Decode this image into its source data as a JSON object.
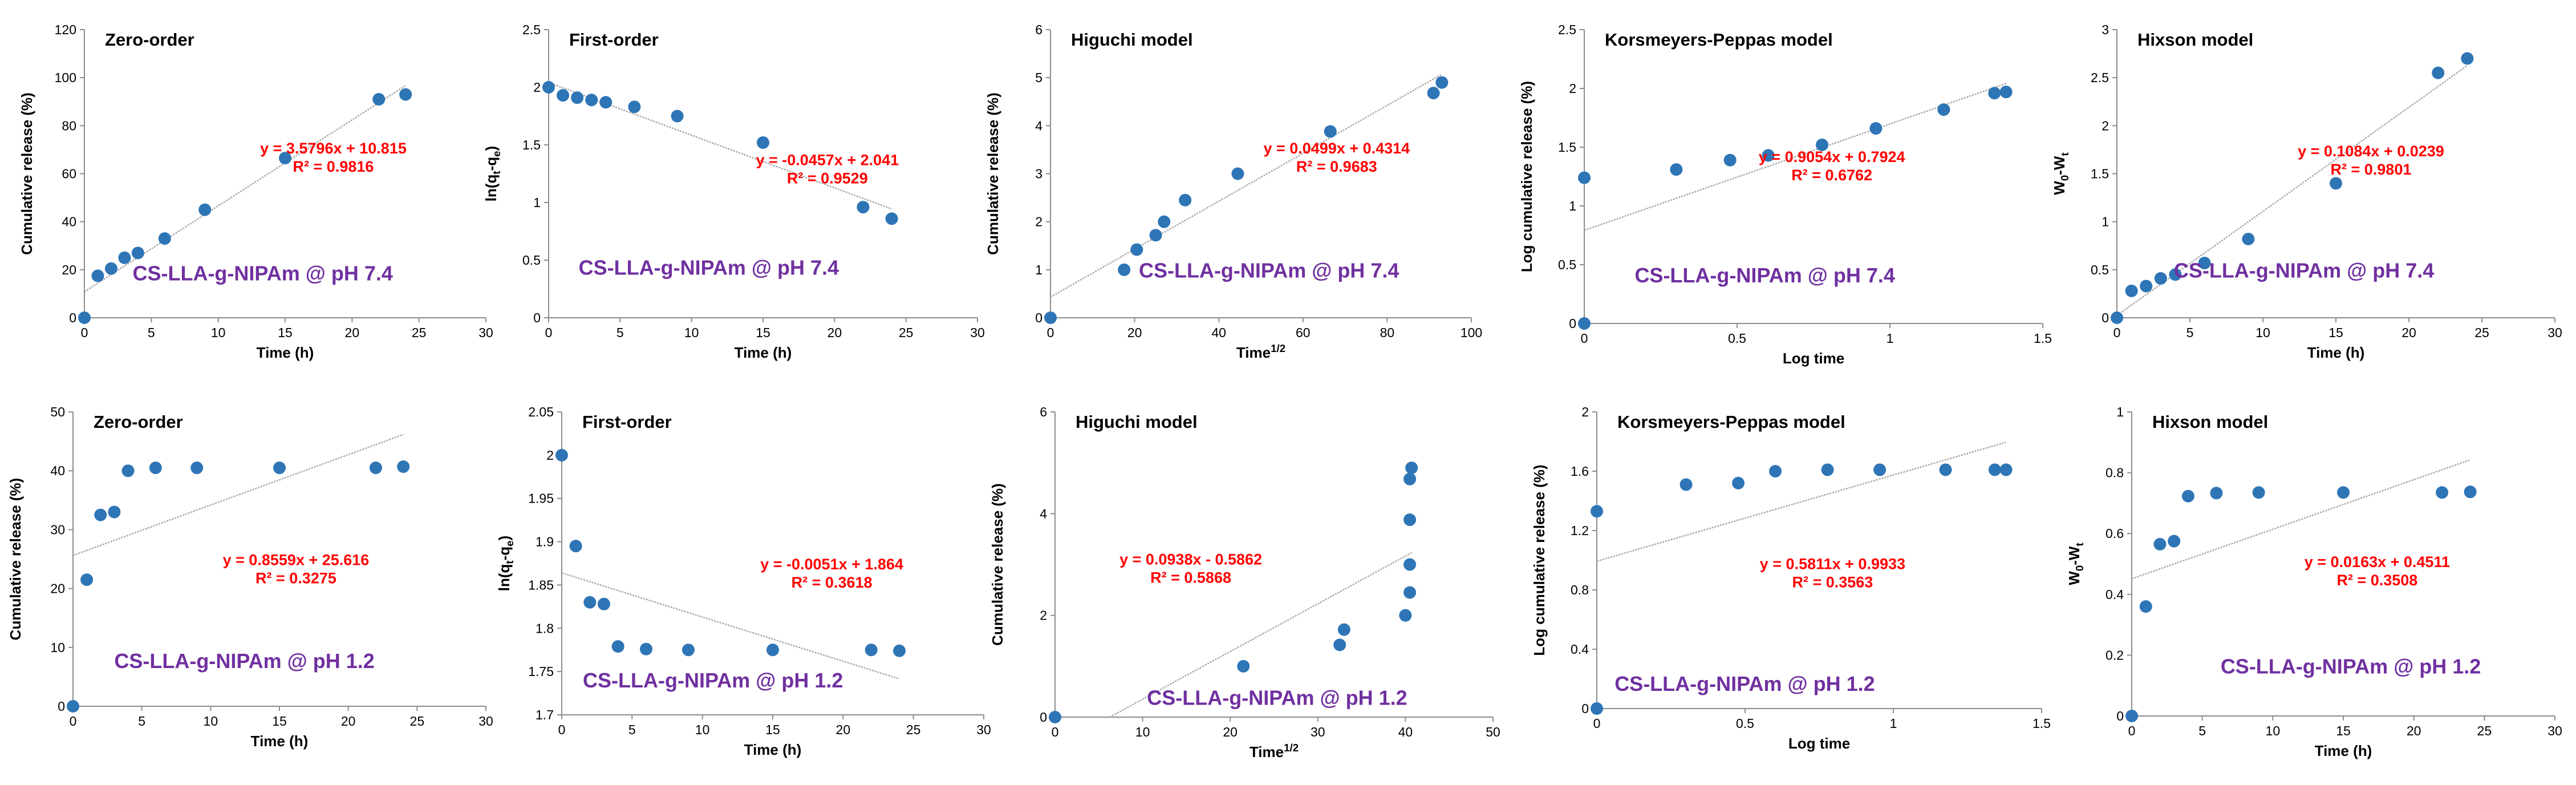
{
  "colors": {
    "point": "#2E75B6",
    "trendline": "#A6A6A6",
    "axis": "#8C8C8C",
    "equation": "#FF0000",
    "sample_label": "#7030A0",
    "text": "#000000"
  },
  "chart_data": [
    {
      "type": "scatter",
      "title": "Zero-order",
      "xlabel": "Time (h)",
      "ylabel": "Cumulative release (%)",
      "xlim": [
        0,
        30
      ],
      "ylim": [
        0,
        120
      ],
      "xticks": [
        0,
        5,
        10,
        15,
        20,
        25,
        30
      ],
      "yticks": [
        0,
        20,
        40,
        60,
        80,
        100,
        120
      ],
      "x": [
        0,
        1,
        2,
        3,
        4,
        6,
        9,
        15,
        22,
        24
      ],
      "y": [
        0,
        17.5,
        20.5,
        25,
        27,
        33,
        45,
        66.5,
        91,
        93
      ],
      "trendline": {
        "slope": 3.5796,
        "intercept": 10.815,
        "x_range": [
          0,
          24
        ]
      },
      "equation": "y = 3.5796x + 10.815",
      "r2": "R² = 0.9816",
      "sample": "CS-LLA-g-NIPAm @ pH 7.4"
    },
    {
      "type": "scatter",
      "title": "First-order",
      "xlabel": "Time (h)",
      "ylabel": "ln(q<sub>t</sub>-q<sub>e</sub>)",
      "xlim": [
        0,
        30
      ],
      "ylim": [
        0,
        2.5
      ],
      "xticks": [
        0,
        5,
        10,
        15,
        20,
        25,
        30
      ],
      "yticks": [
        0,
        0.5,
        1,
        1.5,
        2,
        2.5
      ],
      "x": [
        0,
        1,
        2,
        3,
        4,
        6,
        9,
        15,
        22,
        24
      ],
      "y": [
        2.0,
        1.93,
        1.91,
        1.89,
        1.87,
        1.83,
        1.75,
        1.52,
        0.96,
        0.86
      ],
      "trendline": {
        "slope": -0.0457,
        "intercept": 2.041,
        "x_range": [
          0,
          24
        ]
      },
      "equation": "y = -0.0457x + 2.041",
      "r2": "R² = 0.9529",
      "sample": "CS-LLA-g-NIPAm @ pH 7.4"
    },
    {
      "type": "scatter",
      "title": "Higuchi model",
      "xlabel": "Time<sup>1/2</sup>",
      "ylabel": "Cumulative release (%)",
      "xlim": [
        0,
        100
      ],
      "ylim": [
        0,
        6
      ],
      "xticks": [
        0,
        20,
        40,
        60,
        80,
        100
      ],
      "yticks": [
        0,
        1,
        2,
        3,
        4,
        5,
        6
      ],
      "x": [
        0,
        17.5,
        20.5,
        25,
        27,
        32,
        44.5,
        66.5,
        91,
        93
      ],
      "y": [
        0,
        1.0,
        1.42,
        1.72,
        2.0,
        2.45,
        3.0,
        3.88,
        4.68,
        4.9
      ],
      "trendline": {
        "slope": 0.0499,
        "intercept": 0.4314,
        "x_range": [
          0,
          93
        ]
      },
      "equation": "y = 0.0499x + 0.4314",
      "r2": "R² = 0.9683",
      "sample": "CS-LLA-g-NIPAm @ pH 7.4"
    },
    {
      "type": "scatter",
      "title": "Korsmeyers-Peppas model",
      "xlabel": "Log time",
      "ylabel": "Log cumulative release (%)",
      "xlim": [
        0,
        1.5
      ],
      "ylim": [
        0,
        2.5
      ],
      "xticks": [
        0,
        0.5,
        1,
        1.5
      ],
      "yticks": [
        0,
        0.5,
        1,
        1.5,
        2,
        2.5
      ],
      "x": [
        0,
        0,
        0.301,
        0.477,
        0.602,
        0.778,
        0.954,
        1.176,
        1.342,
        1.38
      ],
      "y": [
        1.24,
        0,
        1.31,
        1.39,
        1.43,
        1.52,
        1.66,
        1.82,
        1.96,
        1.97
      ],
      "trendline": {
        "slope": 0.9054,
        "intercept": 0.7924,
        "x_range": [
          0,
          1.38
        ]
      },
      "equation": "y = 0.9054x + 0.7924",
      "r2": "R² = 0.6762",
      "sample": "CS-LLA-g-NIPAm @ pH 7.4"
    },
    {
      "type": "scatter",
      "title": "Hixson model",
      "xlabel": "Time (h)",
      "ylabel": "W<sub>0</sub>-W<sub>t</sub>",
      "xlim": [
        0,
        30
      ],
      "ylim": [
        0,
        3
      ],
      "xticks": [
        0,
        5,
        10,
        15,
        20,
        25,
        30
      ],
      "yticks": [
        0,
        0.5,
        1,
        1.5,
        2,
        2.5,
        3
      ],
      "x": [
        0,
        1,
        2,
        3,
        4,
        6,
        9,
        15,
        22,
        24
      ],
      "y": [
        0,
        0.28,
        0.33,
        0.41,
        0.45,
        0.57,
        0.82,
        1.4,
        2.55,
        2.7
      ],
      "trendline": {
        "slope": 0.1084,
        "intercept": 0.0239,
        "x_range": [
          0,
          24
        ]
      },
      "equation": "y = 0.1084x + 0.0239",
      "r2": "R² = 0.9801",
      "sample": "CS-LLA-g-NIPAm @ pH 7.4"
    },
    {
      "type": "scatter",
      "title": "Zero-order",
      "xlabel": "Time (h)",
      "ylabel": "Cumulative release (%)",
      "xlim": [
        0,
        30
      ],
      "ylim": [
        0,
        50
      ],
      "xticks": [
        0,
        5,
        10,
        15,
        20,
        25,
        30
      ],
      "yticks": [
        0,
        10,
        20,
        30,
        40,
        50
      ],
      "x": [
        0,
        1,
        2,
        3,
        4,
        6,
        9,
        15,
        22,
        24
      ],
      "y": [
        0,
        21.5,
        32.5,
        33,
        40,
        40.5,
        40.5,
        40.5,
        40.5,
        40.7
      ],
      "trendline": {
        "slope": 0.8559,
        "intercept": 25.616,
        "x_range": [
          0,
          24
        ]
      },
      "equation": "y = 0.8559x + 25.616",
      "r2": "R² = 0.3275",
      "sample": "CS-LLA-g-NIPAm @ pH 1.2"
    },
    {
      "type": "scatter",
      "title": "First-order",
      "xlabel": "Time (h)",
      "ylabel": "ln(q<sub>t</sub>-q<sub>e</sub>)",
      "xlim": [
        0,
        30
      ],
      "ylim": [
        1.7,
        2.05
      ],
      "xticks": [
        0,
        5,
        10,
        15,
        20,
        25,
        30
      ],
      "yticks": [
        1.7,
        1.75,
        1.8,
        1.85,
        1.9,
        1.95,
        2,
        2.05
      ],
      "x": [
        0,
        1,
        2,
        3,
        4,
        6,
        9,
        15,
        22,
        24
      ],
      "y": [
        2.0,
        1.895,
        1.83,
        1.828,
        1.779,
        1.776,
        1.775,
        1.775,
        1.775,
        1.774
      ],
      "trendline": {
        "slope": -0.0051,
        "intercept": 1.864,
        "x_range": [
          0,
          24
        ]
      },
      "equation": "y = -0.0051x + 1.864",
      "r2": "R² = 0.3618",
      "sample": "CS-LLA-g-NIPAm @ pH 1.2"
    },
    {
      "type": "scatter",
      "title": "Higuchi model",
      "xlabel": "Time<sup>1/2</sup>",
      "ylabel": "Cumulative release (%)",
      "xlim": [
        0,
        50
      ],
      "ylim": [
        0,
        6
      ],
      "xticks": [
        0,
        10,
        20,
        30,
        40,
        50
      ],
      "yticks": [
        0,
        2,
        4,
        6
      ],
      "x": [
        0,
        21.5,
        32.5,
        33,
        40,
        40.5,
        40.5,
        40.5,
        40.5,
        40.7
      ],
      "y": [
        0,
        1.0,
        1.42,
        1.72,
        2.0,
        2.45,
        3.0,
        3.88,
        4.68,
        4.9
      ],
      "trendline": {
        "slope": 0.0938,
        "intercept": -0.5862,
        "x_range": [
          6.25,
          40.7
        ]
      },
      "equation": "y = 0.0938x - 0.5862",
      "r2": "R² = 0.5868",
      "sample": "CS-LLA-g-NIPAm @ pH 1.2"
    },
    {
      "type": "scatter",
      "title": "Korsmeyers-Peppas model",
      "xlabel": "Log time",
      "ylabel": "Log cumulative release (%)",
      "xlim": [
        0,
        1.5
      ],
      "ylim": [
        0,
        2
      ],
      "xticks": [
        0,
        0.5,
        1,
        1.5
      ],
      "yticks": [
        0,
        0.4,
        0.8,
        1.2,
        1.6,
        2
      ],
      "x": [
        0,
        0,
        0.301,
        0.477,
        0.602,
        0.778,
        0.954,
        1.176,
        1.342,
        1.38
      ],
      "y": [
        1.33,
        0,
        1.51,
        1.52,
        1.6,
        1.61,
        1.61,
        1.61,
        1.61,
        1.61
      ],
      "trendline": {
        "slope": 0.5811,
        "intercept": 0.9933,
        "x_range": [
          0,
          1.38
        ]
      },
      "equation": "y = 0.5811x + 0.9933",
      "r2": "R² = 0.3563",
      "sample": "CS-LLA-g-NIPAm @ pH 1.2"
    },
    {
      "type": "scatter",
      "title": "Hixson model",
      "xlabel": "Time (h)",
      "ylabel": "W<sub>0</sub>-W<sub>t</sub>",
      "xlim": [
        0,
        30
      ],
      "ylim": [
        0,
        1
      ],
      "xticks": [
        0,
        5,
        10,
        15,
        20,
        25,
        30
      ],
      "yticks": [
        0,
        0.2,
        0.4,
        0.6,
        0.8,
        1
      ],
      "x": [
        0,
        1,
        2,
        3,
        4,
        6,
        9,
        15,
        22,
        24
      ],
      "y": [
        0,
        0.36,
        0.565,
        0.575,
        0.723,
        0.733,
        0.735,
        0.735,
        0.735,
        0.737
      ],
      "trendline": {
        "slope": 0.0163,
        "intercept": 0.4511,
        "x_range": [
          0,
          24
        ]
      },
      "equation": "y = 0.0163x + 0.4511",
      "r2": "R² = 0.3508",
      "sample": "CS-LLA-g-NIPAm @ pH 1.2"
    }
  ]
}
